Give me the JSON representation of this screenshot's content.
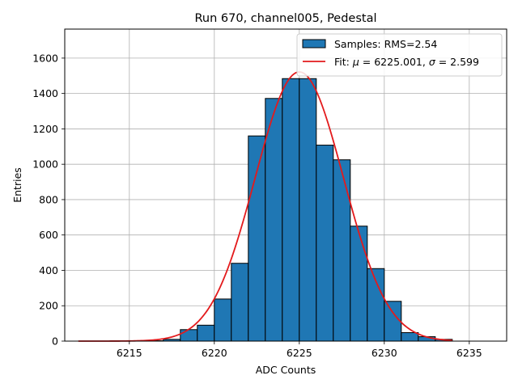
{
  "chart_data": {
    "type": "bar",
    "title": "Run 670, channel005, Pedestal",
    "xlabel": "ADC Counts",
    "ylabel": "Entries",
    "xlim": [
      6211.2,
      6237.2
    ],
    "ylim": [
      0,
      1764
    ],
    "xticks": [
      6215,
      6220,
      6225,
      6230,
      6235
    ],
    "yticks": [
      0,
      200,
      400,
      600,
      800,
      1000,
      1200,
      1400,
      1600
    ],
    "grid": true,
    "legend_position": "top-right",
    "histogram": {
      "name": "Samples: RMS=2.54",
      "color": "#1f77b4",
      "edge_color": "#000000",
      "bin_width": 1,
      "bin_starts": [
        6212,
        6213,
        6214,
        6215,
        6216,
        6217,
        6218,
        6219,
        6220,
        6221,
        6222,
        6223,
        6224,
        6225,
        6226,
        6227,
        6228,
        6229,
        6230,
        6231,
        6232,
        6233
      ],
      "counts": [
        0,
        0,
        0,
        1,
        2,
        10,
        65,
        90,
        238,
        440,
        1160,
        1372,
        1484,
        1484,
        1108,
        1025,
        650,
        410,
        225,
        48,
        25,
        10
      ]
    },
    "fit": {
      "name": "Fit: μ = 6225.001, σ = 2.599",
      "label_prefix": "Fit: ",
      "mu_symbol": "μ",
      "mu_text": " = 6225.001, ",
      "sigma_symbol": "σ",
      "sigma_text": " = 2.599",
      "mu": 6225.001,
      "sigma": 2.599,
      "amplitude": 1522,
      "x_range": [
        6212,
        6234
      ],
      "color": "#e31a1c"
    }
  }
}
